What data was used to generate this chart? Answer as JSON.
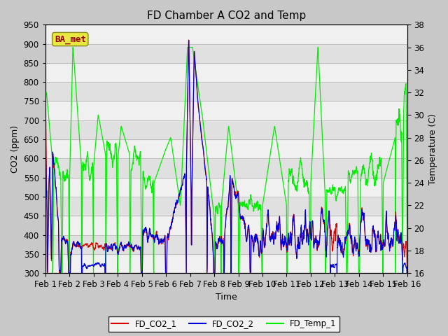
{
  "title": "FD Chamber A CO2 and Temp",
  "xlabel": "Time",
  "ylabel_left": "CO2 (ppm)",
  "ylabel_right": "Temperature (C)",
  "ylim_left": [
    300,
    950
  ],
  "ylim_right": [
    16,
    38
  ],
  "yticks_left": [
    300,
    350,
    400,
    450,
    500,
    550,
    600,
    650,
    700,
    750,
    800,
    850,
    900,
    950
  ],
  "yticks_right": [
    16,
    18,
    20,
    22,
    24,
    26,
    28,
    30,
    32,
    34,
    36,
    38
  ],
  "xtick_labels": [
    "Feb 1",
    "Feb 2",
    "Feb 3",
    "Feb 4",
    "Feb 5",
    "Feb 6",
    "Feb 7",
    "Feb 8",
    "Feb 9",
    "Feb 10",
    "Feb 11",
    "Feb 12",
    "Feb 13",
    "Feb 14",
    "Feb 15",
    "Feb 16"
  ],
  "color_co2_1": "#dd0000",
  "color_co2_2": "#0000dd",
  "color_temp": "#00ee00",
  "background_gray": "#e0e0e0",
  "background_white": "#f0f0f0",
  "legend_labels": [
    "FD_CO2_1",
    "FD_CO2_2",
    "FD_Temp_1"
  ],
  "annotation_text": "BA_met",
  "annotation_bg": "#e8e840",
  "annotation_edge": "#888820",
  "title_fontsize": 11,
  "axis_fontsize": 9,
  "tick_fontsize": 8.5
}
